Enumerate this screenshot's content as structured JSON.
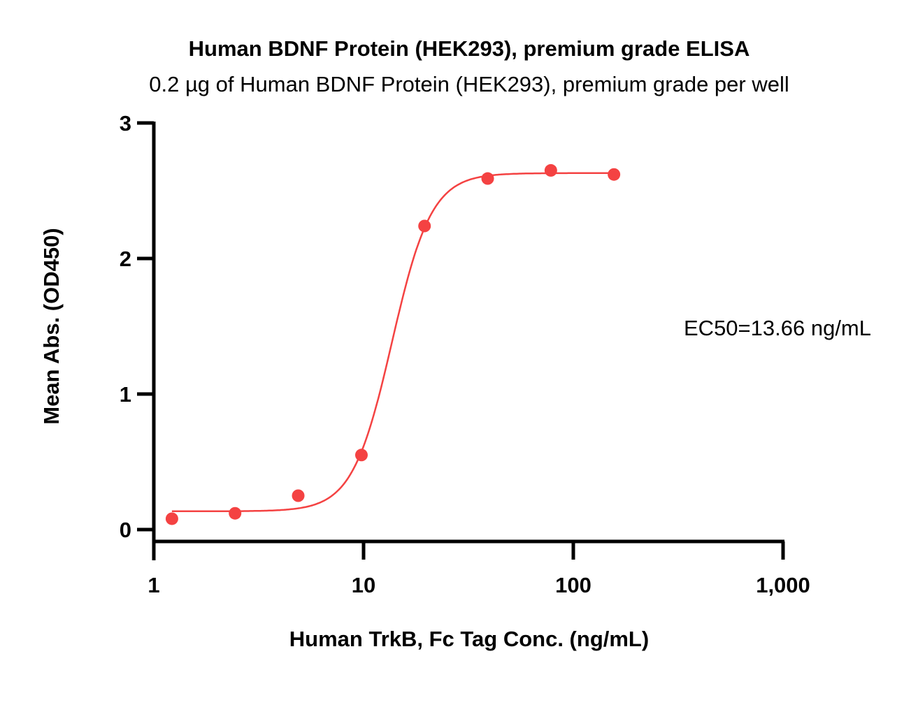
{
  "chart_data": {
    "type": "scatter",
    "title": "Human BDNF Protein (HEK293), premium grade ELISA",
    "subtitle": "0.2 µg of Human BDNF Protein (HEK293), premium grade per well",
    "xlabel": "Human TrkB, Fc Tag Conc. (ng/mL)",
    "ylabel": "Mean Abs. (OD450)",
    "xscale": "log",
    "xlim": [
      1,
      1000
    ],
    "ylim": [
      0,
      3
    ],
    "xticks": [
      1,
      10,
      100,
      1000
    ],
    "xtick_labels": [
      "1",
      "10",
      "100",
      "1,000"
    ],
    "yticks": [
      0,
      1,
      2,
      3
    ],
    "ytick_labels": [
      "0",
      "1",
      "2",
      "3"
    ],
    "grid": false,
    "series": [
      {
        "name": "Human TrkB, Fc Tag",
        "color": "#f44242",
        "x": [
          1.22,
          2.44,
          4.88,
          9.77,
          19.53,
          39.06,
          78.13,
          156.25
        ],
        "y": [
          0.08,
          0.12,
          0.25,
          0.55,
          2.24,
          2.59,
          2.65,
          2.62
        ],
        "fit": {
          "model": "4PL",
          "bottom": 0.135,
          "top": 2.63,
          "ec50": 13.66,
          "hill": 4.6
        }
      }
    ],
    "annotations": [
      "EC50=13.66 ng/mL"
    ]
  }
}
